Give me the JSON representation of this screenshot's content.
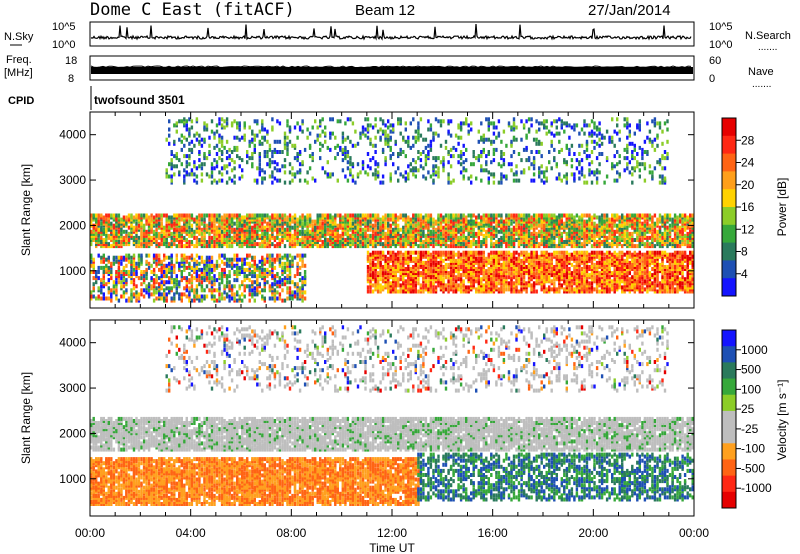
{
  "header": {
    "station": "Dome C East (fitACF)",
    "beam": "Beam 12",
    "date": "27/Jan/2014"
  },
  "summary_panels": {
    "nsky_label": "N.Sky",
    "nsky_top_tick": "10^5",
    "nsky_bottom_tick": "10^0",
    "nsearch_label": "N.Search",
    "nsearch_top_tick": "10^5",
    "nsearch_bottom_tick": "10^0",
    "freq_label": "Freq.",
    "freq_unit": "[MHz]",
    "freq_top_tick": "18",
    "freq_bottom_tick": "8",
    "nave_label": "Nave",
    "nave_top_tick": "60",
    "nave_bottom_tick": "0",
    "cpid_label": "CPID",
    "cpid_text": "twofsound 3501",
    "dots": "......."
  },
  "colors": {
    "power": [
      "#1414ff",
      "#1e50b4",
      "#2a7a5c",
      "#36a83a",
      "#8ccd28",
      "#ffd200",
      "#ff9f1a",
      "#ff6414",
      "#ff2814",
      "#e60000"
    ],
    "velocity": [
      "#1414ff",
      "#1e50b4",
      "#2a7a5c",
      "#36a83a",
      "#8ccd28",
      "#bebebe",
      "#bebebe",
      "#ffa01e",
      "#ff6414",
      "#ff2814",
      "#e60000"
    ],
    "ground_scatter": "#bebebe"
  },
  "chart_data": [
    {
      "type": "heatmap",
      "title": "",
      "ylabel": "Slant Range [km]",
      "xlabel": "",
      "xlim": [
        "00:00",
        "24:00"
      ],
      "ylim": [
        180,
        4500
      ],
      "y_ticks": [
        "1000",
        "2000",
        "3000",
        "4000"
      ],
      "colorbar": {
        "label": "Power [dB]",
        "ticks": [
          "4",
          "8",
          "12",
          "16",
          "20",
          "24",
          "28"
        ],
        "range": [
          0,
          30
        ]
      },
      "bands": [
        {
          "name": "main echo band",
          "x_start": 0,
          "x_end": 24,
          "y_low": 1500,
          "y_high": 2200,
          "level": "12-24 dB"
        },
        {
          "name": "low range echoes (strong)",
          "x_start": 11,
          "x_end": 24,
          "y_low": 500,
          "y_high": 1400,
          "level": "20-30 dB"
        },
        {
          "name": "near range patches",
          "x_start": 0,
          "x_end": 8.5,
          "y_low": 300,
          "y_high": 1300,
          "level": "8-24 dB"
        },
        {
          "name": "far range patches",
          "x_start": 3,
          "x_end": 23,
          "y_low": 2900,
          "y_high": 4300,
          "level": "4-16 dB"
        }
      ]
    },
    {
      "type": "heatmap",
      "title": "",
      "ylabel": "Slant Range [km]",
      "xlabel": "Time UT",
      "xlim": [
        "00:00",
        "24:00"
      ],
      "ylim": [
        180,
        4500
      ],
      "y_ticks": [
        "1000",
        "2000",
        "3000",
        "4000"
      ],
      "x_ticks": [
        "00:00",
        "04:00",
        "08:00",
        "12:00",
        "16:00",
        "20:00",
        "00:00"
      ],
      "colorbar": {
        "label": "Velocity [m s⁻¹]",
        "ticks": [
          "1000",
          "500",
          "100",
          "25",
          "-25",
          "-100",
          "-500",
          "-1000"
        ],
        "range": [
          -1000,
          1000
        ]
      },
      "bands": [
        {
          "name": "ground scatter band",
          "x_start": 0,
          "x_end": 24,
          "y_low": 1600,
          "y_high": 2300,
          "level": "ground scatter (grey)"
        },
        {
          "name": "negative velocity echoes",
          "x_start": 0,
          "x_end": 13,
          "y_low": 400,
          "y_high": 1400,
          "level": "-100 to -500 m/s"
        },
        {
          "name": "positive velocity echoes",
          "x_start": 13,
          "x_end": 24,
          "y_low": 500,
          "y_high": 1500,
          "level": "100 to 500 m/s"
        },
        {
          "name": "far range scatter",
          "x_start": 3,
          "x_end": 23,
          "y_low": 2900,
          "y_high": 4300,
          "level": "mixed"
        }
      ]
    }
  ]
}
